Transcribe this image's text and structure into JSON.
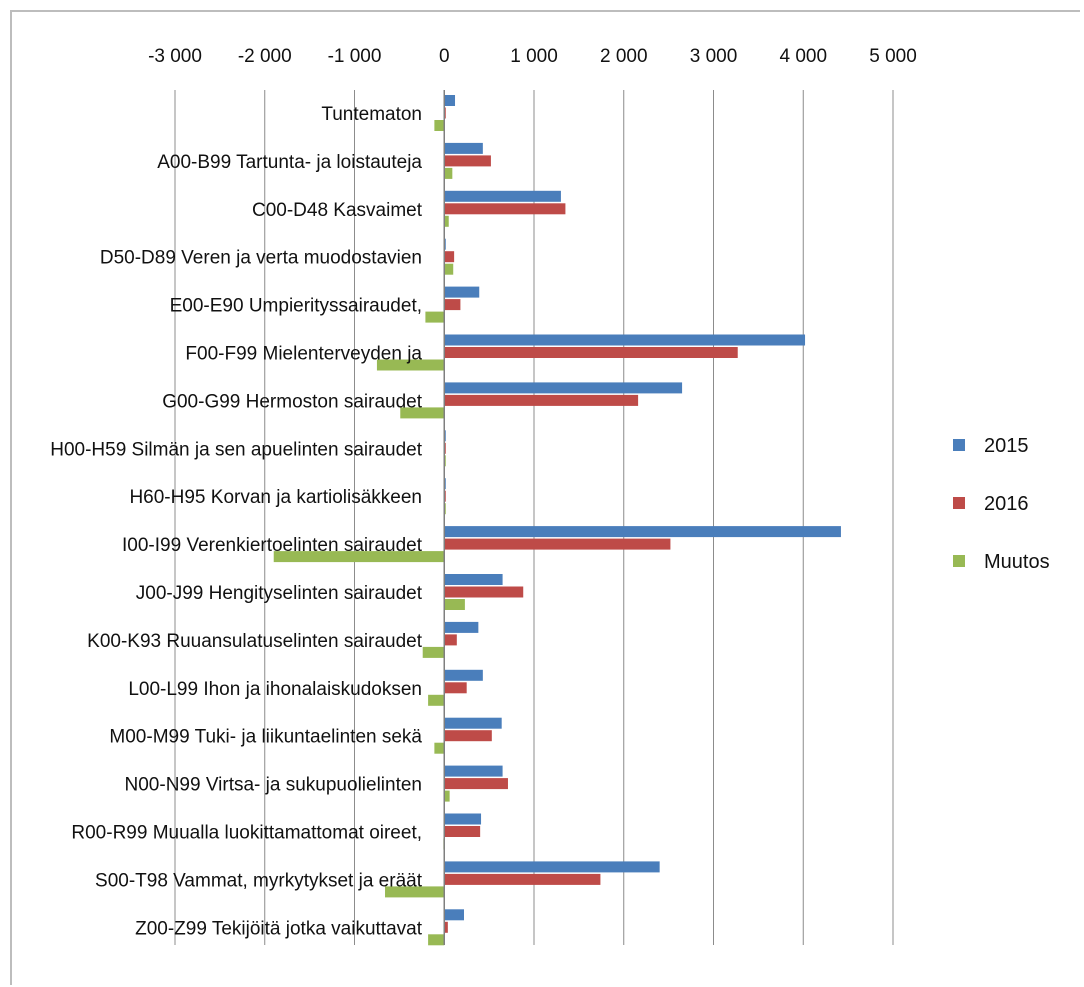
{
  "chart_data": {
    "type": "bar",
    "orientation": "horizontal",
    "title": "",
    "xlabel": "",
    "ylabel": "",
    "xlim": [
      -3000,
      5000
    ],
    "x_tick_values": [
      -3000,
      -2000,
      -1000,
      0,
      1000,
      2000,
      3000,
      4000,
      5000
    ],
    "x_tick_labels": [
      "-3 000",
      "-2 000",
      "-1 000",
      "0",
      "1 000",
      "2 000",
      "3 000",
      "4 000",
      "5 000"
    ],
    "grid": true,
    "legend_position": "right",
    "categories": [
      "Tuntematon",
      "A00-B99 Tartunta- ja loistauteja",
      "C00-D48 Kasvaimet",
      "D50-D89 Veren ja verta muodostavien",
      "E00-E90 Umpierityssairaudet,",
      "F00-F99 Mielenterveyden ja",
      "G00-G99 Hermoston sairaudet",
      "H00-H59 Silmän ja sen apuelinten sairaudet",
      "H60-H95 Korvan ja kartiolisäkkeen",
      "I00-I99 Verenkiertoelinten sairaudet",
      "J00-J99 Hengityselinten sairaudet",
      "K00-K93 Ruuansulatuselinten sairaudet",
      "L00-L99 Ihon ja ihonalaiskudoksen",
      "M00-M99 Tuki- ja liikuntaelinten sekä",
      "N00-N99 Virtsa- ja sukupuolielinten",
      "R00-R99 Muualla luokittamattomat oireet,",
      "S00-T98 Vammat, myrkytykset ja eräät",
      "Z00-Z99 Tekijöitä jotka vaikuttavat"
    ],
    "series": [
      {
        "name": "2015",
        "color": "#4a7ebb",
        "values": [
          120,
          430,
          1300,
          10,
          390,
          4020,
          2650,
          10,
          10,
          4420,
          650,
          380,
          430,
          640,
          650,
          410,
          2400,
          220
        ]
      },
      {
        "name": "2016",
        "color": "#be4b48",
        "values": [
          10,
          520,
          1350,
          110,
          180,
          3270,
          2160,
          10,
          10,
          2520,
          880,
          140,
          250,
          530,
          710,
          400,
          1740,
          40
        ]
      },
      {
        "name": "Muutos",
        "color": "#98b954",
        "values": [
          -110,
          90,
          50,
          100,
          -210,
          -750,
          -490,
          5,
          5,
          -1900,
          230,
          -240,
          -180,
          -110,
          60,
          -10,
          -660,
          -180
        ]
      }
    ]
  }
}
